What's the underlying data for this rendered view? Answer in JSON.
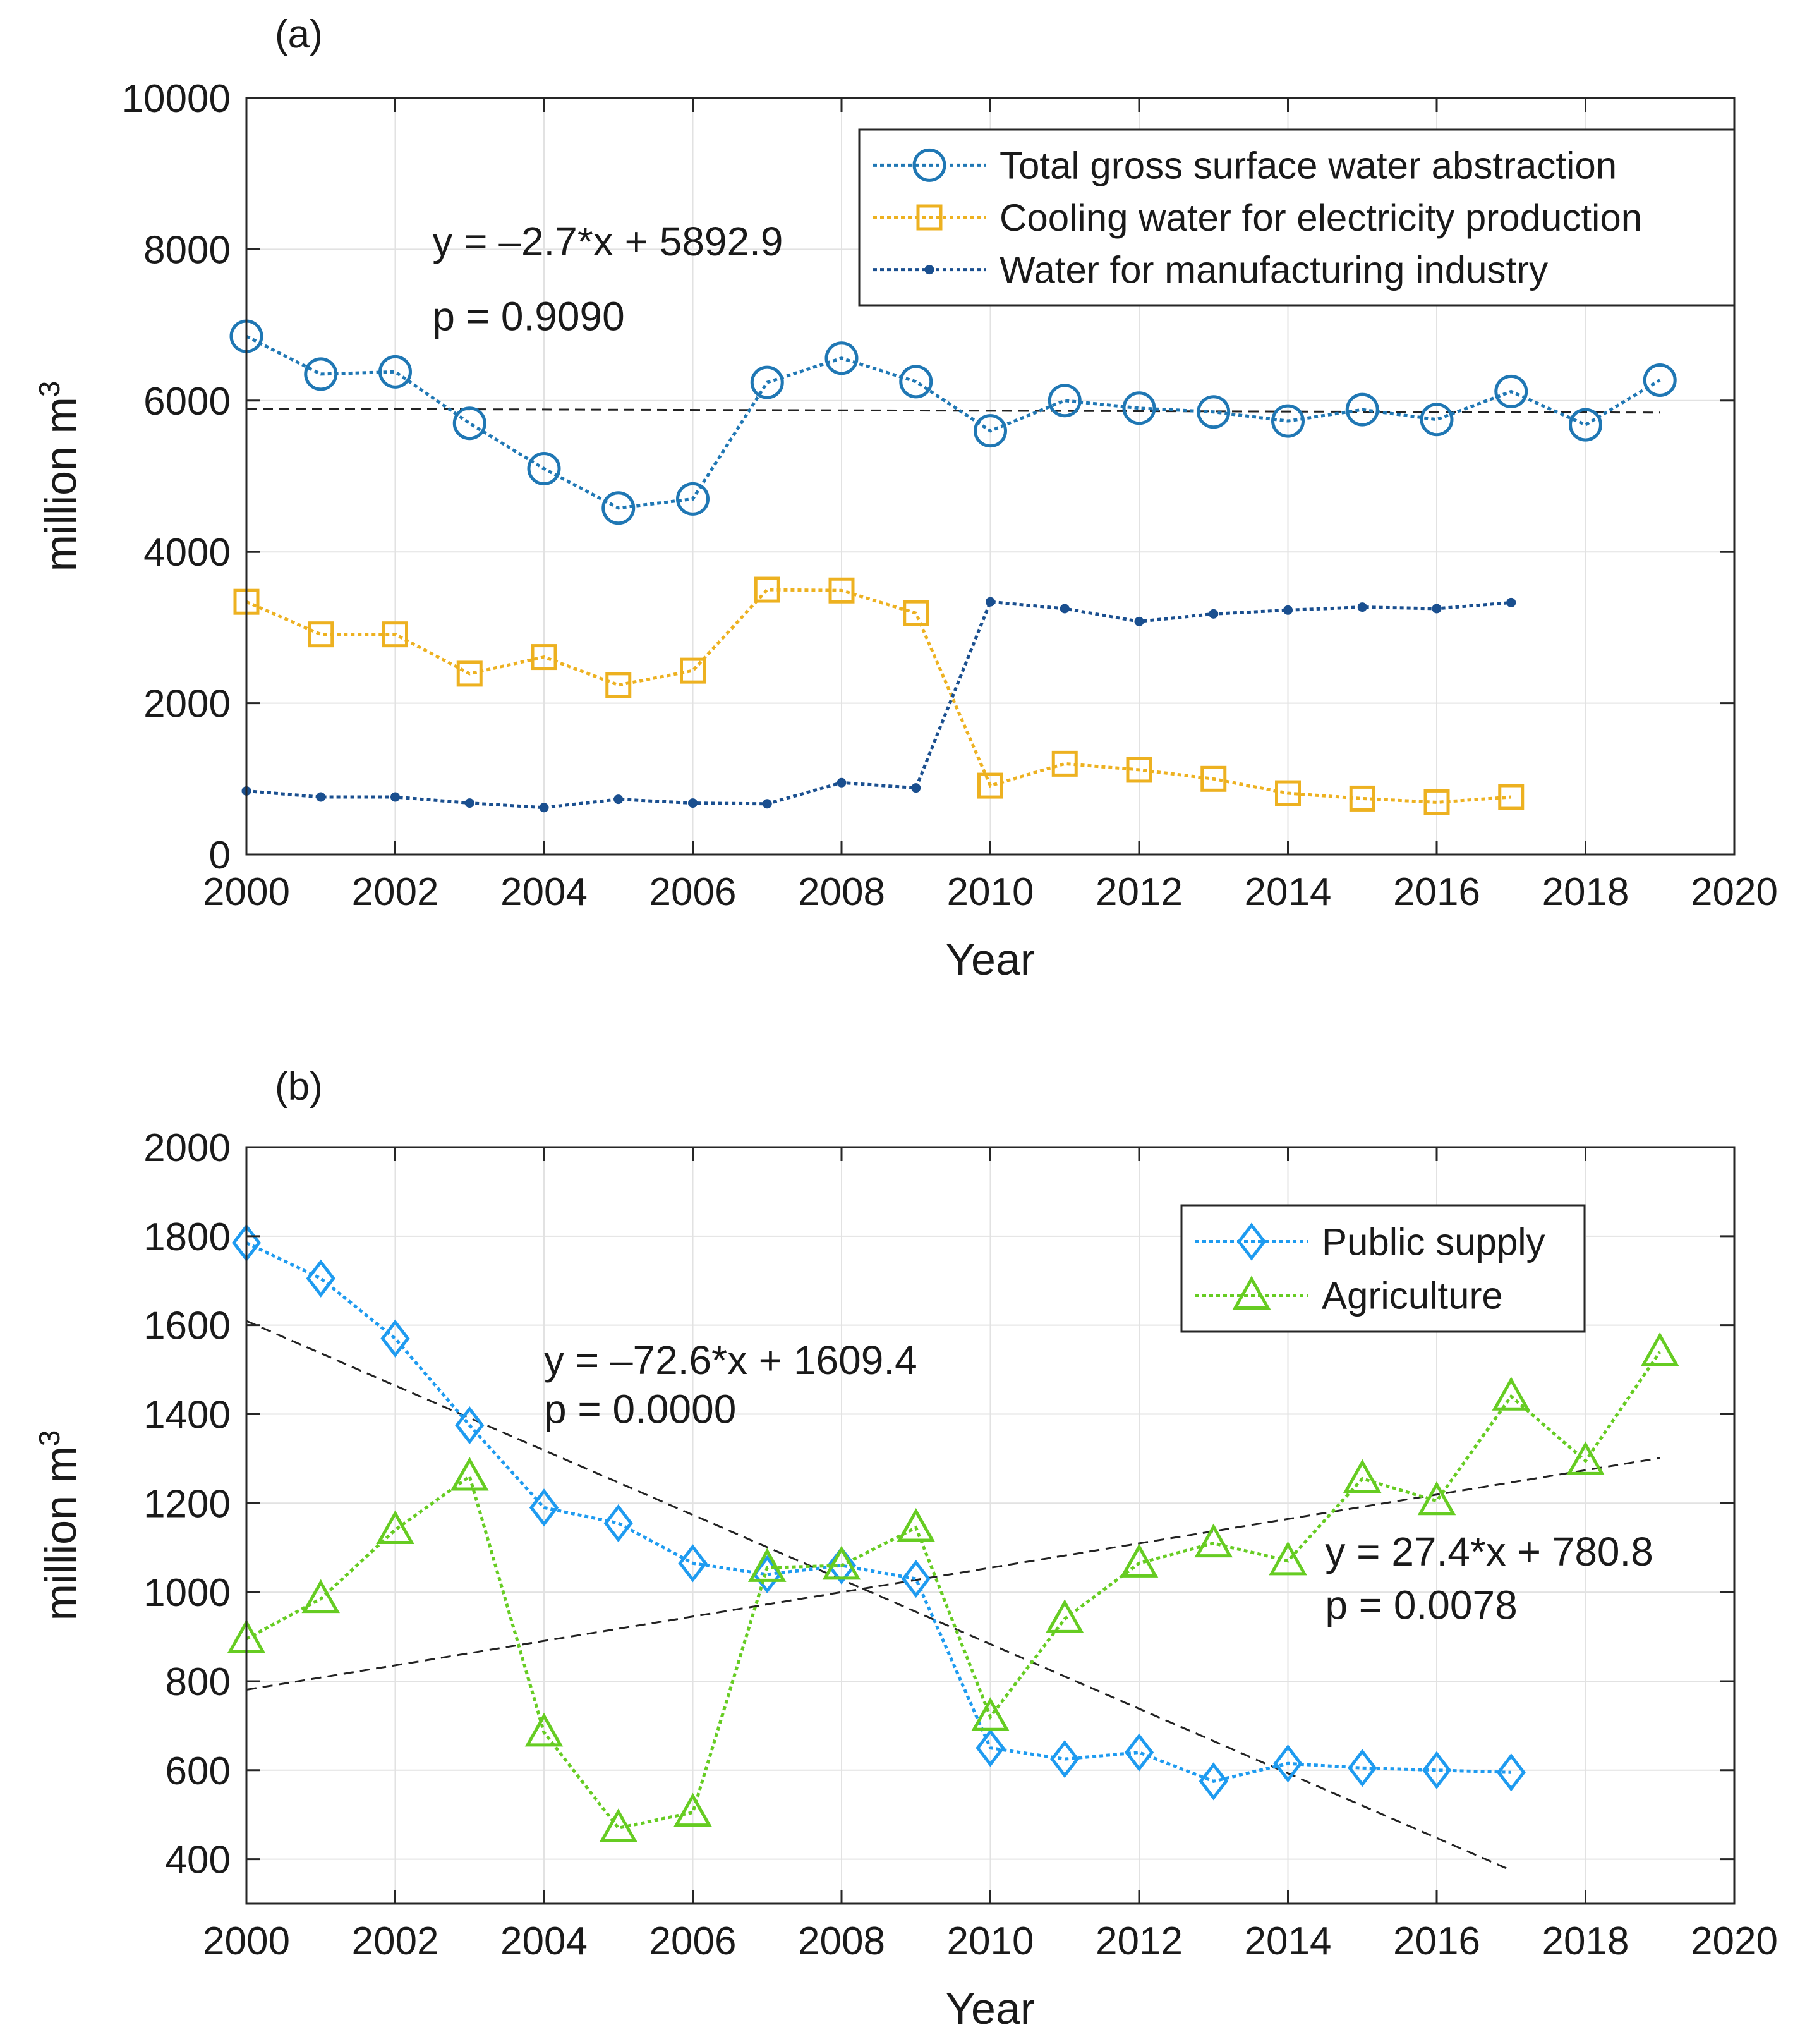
{
  "chart_data": [
    {
      "type": "line",
      "panel_label": "(a)",
      "xlabel": "Year",
      "ylabel": "million m",
      "ylabel_sup": "3",
      "xlim": [
        2000,
        2020
      ],
      "ylim": [
        0,
        10000
      ],
      "xticks": [
        2000,
        2002,
        2004,
        2006,
        2008,
        2010,
        2012,
        2014,
        2016,
        2018,
        2020
      ],
      "yticks": [
        0,
        2000,
        4000,
        6000,
        8000,
        10000
      ],
      "grid": true,
      "legend_position": "top-right",
      "series": [
        {
          "name": "Total gross surface water abstraction",
          "color": "#1f77b4",
          "marker": "circle",
          "x": [
            2000,
            2001,
            2002,
            2003,
            2004,
            2005,
            2006,
            2007,
            2008,
            2009,
            2010,
            2011,
            2012,
            2013,
            2014,
            2015,
            2016,
            2017,
            2018,
            2019
          ],
          "values": [
            6850,
            6350,
            6380,
            5700,
            5100,
            4580,
            4700,
            6240,
            6560,
            6250,
            5600,
            6000,
            5900,
            5850,
            5730,
            5880,
            5750,
            6120,
            5680,
            6270
          ]
        },
        {
          "name": "Cooling water for electricity production",
          "color": "#edb120",
          "marker": "square",
          "x": [
            2000,
            2001,
            2002,
            2003,
            2004,
            2005,
            2006,
            2007,
            2008,
            2009,
            2010,
            2011,
            2012,
            2013,
            2014,
            2015,
            2016,
            2017
          ],
          "values": [
            3340,
            2910,
            2910,
            2390,
            2610,
            2240,
            2430,
            3500,
            3490,
            3190,
            910,
            1200,
            1120,
            1000,
            810,
            740,
            690,
            760
          ]
        },
        {
          "name": "Water for manufacturing industry",
          "color": "#1a4f8f",
          "marker": "dot",
          "x": [
            2000,
            2001,
            2002,
            2003,
            2004,
            2005,
            2006,
            2007,
            2008,
            2009,
            2010,
            2011,
            2012,
            2013,
            2014,
            2015,
            2016,
            2017
          ],
          "values": [
            840,
            760,
            760,
            680,
            620,
            730,
            680,
            670,
            950,
            880,
            3340,
            3250,
            3080,
            3180,
            3230,
            3270,
            3250,
            3330
          ]
        }
      ],
      "trend_lines": [
        {
          "x": [
            2000,
            2019
          ],
          "values": [
            5892.9,
            5841.6
          ]
        }
      ],
      "annotations": [
        {
          "text": "y = –2.7*x + 5892.9",
          "x": 2002.5,
          "y": 7920
        },
        {
          "text": "p = 0.9090",
          "x": 2002.5,
          "y": 6930
        }
      ]
    },
    {
      "type": "line",
      "panel_label": "(b)",
      "xlabel": "Year",
      "ylabel": "million m",
      "ylabel_sup": "3",
      "xlim": [
        2000,
        2020
      ],
      "ylim": [
        300,
        2000
      ],
      "xticks": [
        2000,
        2002,
        2004,
        2006,
        2008,
        2010,
        2012,
        2014,
        2016,
        2018,
        2020
      ],
      "yticks": [
        400,
        600,
        800,
        1000,
        1200,
        1400,
        1600,
        1800,
        2000
      ],
      "grid": true,
      "legend_position": "top-right",
      "series": [
        {
          "name": "Public supply",
          "color": "#1e9bf0",
          "marker": "diamond",
          "x": [
            2000,
            2001,
            2002,
            2003,
            2004,
            2005,
            2006,
            2007,
            2008,
            2009,
            2010,
            2011,
            2012,
            2013,
            2014,
            2015,
            2016,
            2017
          ],
          "values": [
            1785,
            1705,
            1570,
            1375,
            1190,
            1155,
            1065,
            1040,
            1060,
            1030,
            650,
            625,
            640,
            575,
            615,
            605,
            600,
            595
          ]
        },
        {
          "name": "Agriculture",
          "color": "#66cc22",
          "marker": "triangle",
          "x": [
            2000,
            2001,
            2002,
            2003,
            2004,
            2005,
            2006,
            2007,
            2008,
            2009,
            2010,
            2011,
            2012,
            2013,
            2014,
            2015,
            2016,
            2017,
            2018,
            2019
          ],
          "values": [
            895,
            985,
            1140,
            1260,
            685,
            470,
            505,
            1055,
            1060,
            1145,
            720,
            940,
            1065,
            1110,
            1070,
            1255,
            1205,
            1440,
            1295,
            1540
          ]
        }
      ],
      "trend_lines": [
        {
          "x": [
            2000,
            2017
          ],
          "values": [
            1609.4,
            375
          ]
        },
        {
          "x": [
            2000,
            2019
          ],
          "values": [
            780.8,
            1301.4
          ]
        }
      ],
      "annotations": [
        {
          "text": "y = –72.6*x + 1609.4",
          "x": 2004.0,
          "y": 1490
        },
        {
          "text": "p = 0.0000",
          "x": 2004.0,
          "y": 1380
        },
        {
          "text": "y = 27.4*x + 780.8",
          "x": 2014.5,
          "y": 1060
        },
        {
          "text": "p = 0.0078",
          "x": 2014.5,
          "y": 940
        }
      ]
    }
  ]
}
